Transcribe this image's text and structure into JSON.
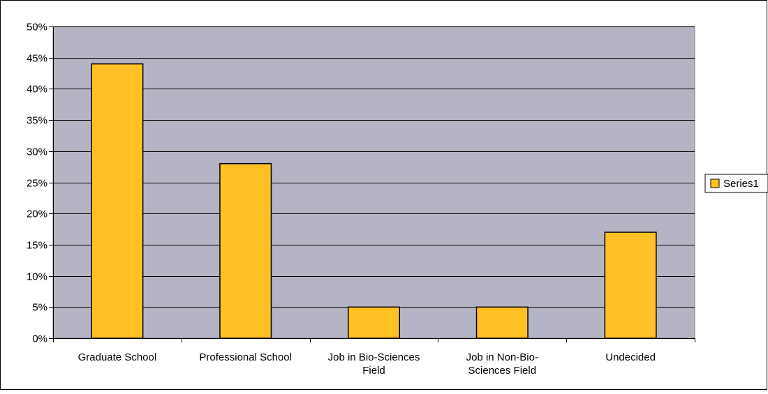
{
  "chart_data": {
    "type": "bar",
    "title": "",
    "xlabel": "",
    "ylabel": "",
    "categories": [
      [
        "Graduate School"
      ],
      [
        "Professional School"
      ],
      [
        "Job in Bio-Sciences",
        "Field"
      ],
      [
        "Job in Non-Bio-",
        "Sciences Field"
      ],
      [
        "Undecided"
      ]
    ],
    "series": [
      {
        "name": "Series1",
        "values": [
          44,
          28,
          5,
          5,
          17
        ]
      }
    ],
    "ylim": [
      0,
      50
    ],
    "yticks": [
      0,
      5,
      10,
      15,
      20,
      25,
      30,
      35,
      40,
      45,
      50
    ],
    "ytick_labels": [
      "0%",
      "5%",
      "10%",
      "15%",
      "20%",
      "25%",
      "30%",
      "35%",
      "40%",
      "45%",
      "50%"
    ],
    "grid": true,
    "legend_position": "right",
    "colors": {
      "plot_background": "#b4b4c4",
      "bar_fill": "#ffc125",
      "bar_stroke": "#000000",
      "gridline": "#000000",
      "frame": "#808080"
    }
  }
}
